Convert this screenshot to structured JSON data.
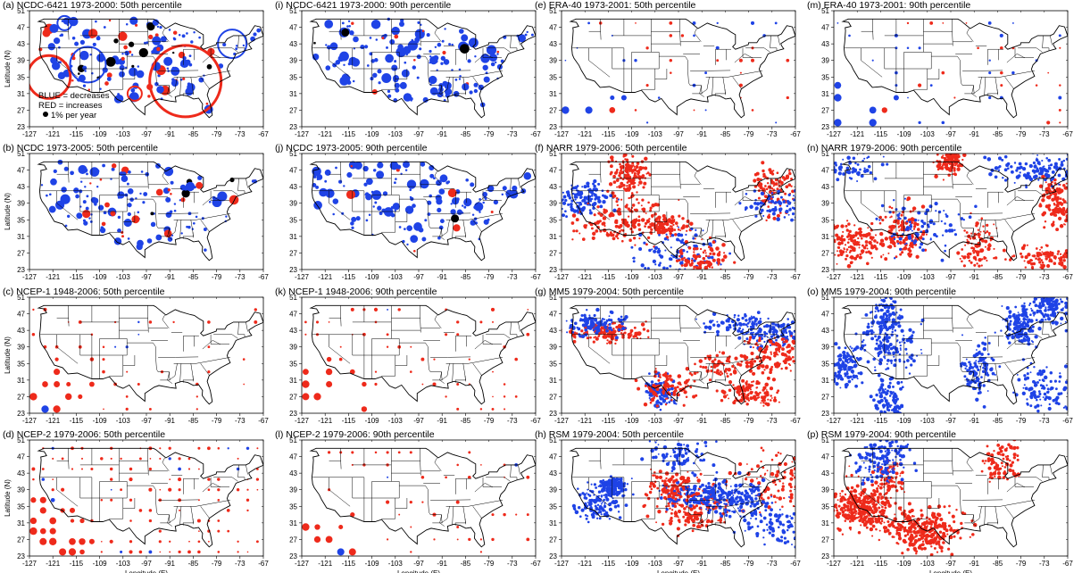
{
  "chart_data": {
    "type": "scatter",
    "xlim": [
      -127,
      -67
    ],
    "ylim": [
      23,
      51
    ],
    "x_ticks": [
      -127,
      -121,
      -115,
      -109,
      -103,
      -97,
      -91,
      -85,
      -79,
      -73,
      -67
    ],
    "y_ticks": [
      23,
      27,
      31,
      35,
      39,
      43,
      47,
      51
    ],
    "xlabel": "Longitude (E)",
    "ylabel": "Latitude (N)",
    "colors": {
      "decrease": "#1f43e6",
      "increase": "#ee2a1b",
      "scale": "#000000",
      "outline": "#000000"
    },
    "legend": {
      "blue": "BLUE = decreases",
      "red": "RED = increases",
      "scale": "1% per year"
    },
    "panels": [
      {
        "id": "a",
        "title": "(a) NCDC-6421 1973-2000: 50th percentile",
        "style": "station",
        "density": "high",
        "blue_share": 0.7,
        "large_circles": [
          {
            "lon": -122,
            "lat": 35,
            "r": 6,
            "color": "increase"
          },
          {
            "lon": -112,
            "lat": 38,
            "r": 5,
            "color": "decrease"
          },
          {
            "lon": -87,
            "lat": 34,
            "r": 10,
            "color": "increase"
          },
          {
            "lon": -75,
            "lat": 43,
            "r": 4,
            "color": "decrease"
          },
          {
            "lon": -100,
            "lat": 31,
            "r": 2,
            "color": "increase"
          },
          {
            "lon": -118,
            "lat": 48,
            "r": 2,
            "color": "decrease"
          }
        ]
      },
      {
        "id": "i",
        "title": "(i) NCDC-6421 1973-2000: 90th percentile",
        "style": "station",
        "density": "high",
        "blue_share": 0.9
      },
      {
        "id": "e",
        "title": "(e) ERA-40 1973-2001: 50th percentile",
        "style": "grid",
        "density": "low",
        "blue_share": 0.45
      },
      {
        "id": "m",
        "title": "(m) ERA-40 1973-2001: 90th percentile",
        "style": "grid",
        "density": "low",
        "blue_share": 0.55
      },
      {
        "id": "b",
        "title": "(b) NCDC 1973-2005: 50th percentile",
        "style": "station",
        "density": "medium",
        "blue_share": 0.85
      },
      {
        "id": "j",
        "title": "(j) NCDC 1973-2005: 90th percentile",
        "style": "station",
        "density": "medium",
        "blue_share": 0.95
      },
      {
        "id": "f",
        "title": "(f) NARR 1979-2006: 50th percentile",
        "style": "dense",
        "density": "high",
        "blue_share": 0.35
      },
      {
        "id": "n",
        "title": "(n) NARR 1979-2006: 90th percentile",
        "style": "dense",
        "density": "high",
        "blue_share": 0.55
      },
      {
        "id": "c",
        "title": "(c) NCEP-1 1948-2006: 50th percentile",
        "style": "grid",
        "density": "low",
        "blue_share": 0.1
      },
      {
        "id": "k",
        "title": "(k) NCEP-1 1948-2006: 90th percentile",
        "style": "grid",
        "density": "low",
        "blue_share": 0.05
      },
      {
        "id": "g",
        "title": "(g) MM5 1979-2004: 50th percentile",
        "style": "dense",
        "density": "high",
        "blue_share": 0.65
      },
      {
        "id": "o",
        "title": "(o) MM5 1979-2004: 90th percentile",
        "style": "dense",
        "density": "high",
        "blue_share": 0.85
      },
      {
        "id": "d",
        "title": "(d) NCEP-2 1979-2006: 50th percentile",
        "style": "grid",
        "density": "medium",
        "blue_share": 0.1
      },
      {
        "id": "l",
        "title": "(l) NCEP-2 1979-2006: 90th percentile",
        "style": "grid",
        "density": "low",
        "blue_share": 0.05
      },
      {
        "id": "h",
        "title": "(h) RSM 1979-2004: 50th percentile",
        "style": "dense",
        "density": "high",
        "blue_share": 0.5
      },
      {
        "id": "p",
        "title": "(p) RSM 1979-2004: 90th percentile",
        "style": "dense",
        "density": "high",
        "blue_share": 0.5
      }
    ]
  }
}
